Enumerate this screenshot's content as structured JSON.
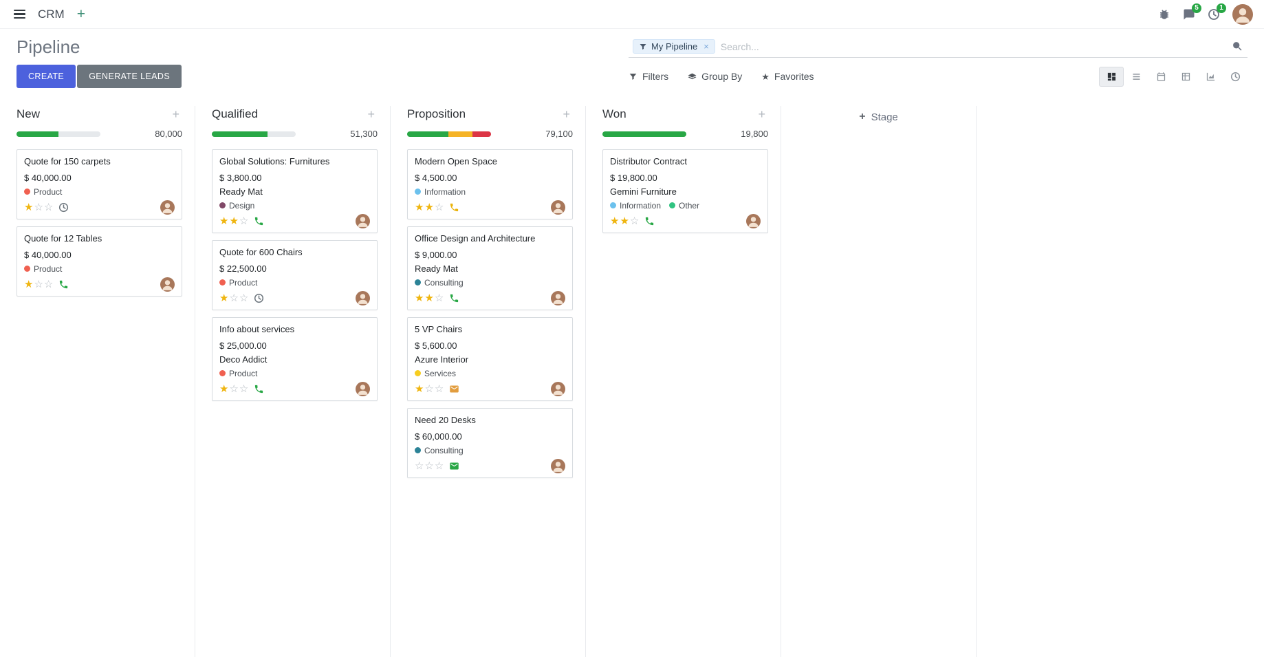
{
  "colors": {
    "primary": "#4c61dd",
    "secondary": "#6c757d",
    "success": "#28a745",
    "warning": "#f0ad4e",
    "danger": "#dc3545",
    "star": "#efb510",
    "badge": "#28a745"
  },
  "navbar": {
    "app_name": "CRM",
    "plus": "+",
    "messages_badge": "5",
    "activities_badge": "1"
  },
  "control_panel": {
    "title": "Pipeline",
    "buttons": {
      "create": "CREATE",
      "generate_leads": "GENERATE LEADS"
    },
    "search": {
      "facet_label": "My Pipeline",
      "facet_remove": "×",
      "placeholder": "Search..."
    },
    "menus": {
      "filters": "Filters",
      "group_by": "Group By",
      "favorites": "Favorites"
    },
    "view_switcher": [
      "kanban",
      "list",
      "calendar",
      "pivot",
      "graph",
      "activity"
    ],
    "active_view": "kanban"
  },
  "board": {
    "add_stage_plus": "+",
    "add_stage_label": "Stage",
    "column_add": "+",
    "columns": [
      {
        "name": "New",
        "total": "80,000",
        "progress": [
          {
            "state": "planned",
            "color": "#28a745",
            "pct": 50
          }
        ],
        "cards": [
          {
            "title": "Quote for 150 carpets",
            "amount": "$ 40,000.00",
            "partner": "",
            "tags": [
              {
                "label": "Product",
                "color": "#f06050"
              }
            ],
            "stars_filled": 1,
            "activity": {
              "icon": "clock-icon",
              "color": "#6c757d"
            }
          },
          {
            "title": "Quote for 12 Tables",
            "amount": "$ 40,000.00",
            "partner": "",
            "tags": [
              {
                "label": "Product",
                "color": "#f06050"
              }
            ],
            "stars_filled": 1,
            "activity": {
              "icon": "phone-icon",
              "color": "#28a745"
            }
          }
        ]
      },
      {
        "name": "Qualified",
        "total": "51,300",
        "progress": [
          {
            "state": "planned",
            "color": "#28a745",
            "pct": 66
          }
        ],
        "cards": [
          {
            "title": "Global Solutions: Furnitures",
            "amount": "$ 3,800.00",
            "partner": "Ready Mat",
            "tags": [
              {
                "label": "Design",
                "color": "#814968"
              }
            ],
            "stars_filled": 2,
            "activity": {
              "icon": "phone-icon",
              "color": "#28a745"
            }
          },
          {
            "title": "Quote for 600 Chairs",
            "amount": "$ 22,500.00",
            "partner": "",
            "tags": [
              {
                "label": "Product",
                "color": "#f06050"
              }
            ],
            "stars_filled": 1,
            "activity": {
              "icon": "clock-icon",
              "color": "#6c757d"
            }
          },
          {
            "title": "Info about services",
            "amount": "$ 25,000.00",
            "partner": "Deco Addict",
            "tags": [
              {
                "label": "Product",
                "color": "#f06050"
              }
            ],
            "stars_filled": 1,
            "activity": {
              "icon": "phone-icon",
              "color": "#28a745"
            }
          }
        ]
      },
      {
        "name": "Proposition",
        "total": "79,100",
        "progress": [
          {
            "state": "planned",
            "color": "#28a745",
            "pct": 49
          },
          {
            "state": "today",
            "color": "#f5b326",
            "pct": 29
          },
          {
            "state": "overdue",
            "color": "#dc3545",
            "pct": 22
          }
        ],
        "cards": [
          {
            "title": "Modern Open Space",
            "amount": "$ 4,500.00",
            "partner": "",
            "tags": [
              {
                "label": "Information",
                "color": "#6cc1ed"
              }
            ],
            "stars_filled": 2,
            "activity": {
              "icon": "phone-icon",
              "color": "#eab30c"
            }
          },
          {
            "title": "Office Design and Architecture",
            "amount": "$ 9,000.00",
            "partner": "Ready Mat",
            "tags": [
              {
                "label": "Consulting",
                "color": "#2c8397"
              }
            ],
            "stars_filled": 2,
            "activity": {
              "icon": "phone-icon",
              "color": "#28a745"
            }
          },
          {
            "title": "5 VP Chairs",
            "amount": "$ 5,600.00",
            "partner": "Azure Interior",
            "tags": [
              {
                "label": "Services",
                "color": "#f7cd1f"
              }
            ],
            "stars_filled": 1,
            "activity": {
              "icon": "envelope-icon",
              "color": "#e29d3e"
            }
          },
          {
            "title": "Need 20 Desks",
            "amount": "$ 60,000.00",
            "partner": "",
            "tags": [
              {
                "label": "Consulting",
                "color": "#2c8397"
              }
            ],
            "stars_filled": 0,
            "activity": {
              "icon": "envelope-icon",
              "color": "#28a745"
            }
          }
        ]
      },
      {
        "name": "Won",
        "total": "19,800",
        "progress": [
          {
            "state": "planned",
            "color": "#28a745",
            "pct": 100
          }
        ],
        "cards": [
          {
            "title": "Distributor Contract",
            "amount": "$ 19,800.00",
            "partner": "Gemini Furniture",
            "tags": [
              {
                "label": "Information",
                "color": "#6cc1ed"
              },
              {
                "label": "Other",
                "color": "#30c381"
              }
            ],
            "stars_filled": 2,
            "activity": {
              "icon": "phone-icon",
              "color": "#28a745"
            }
          }
        ]
      }
    ]
  }
}
